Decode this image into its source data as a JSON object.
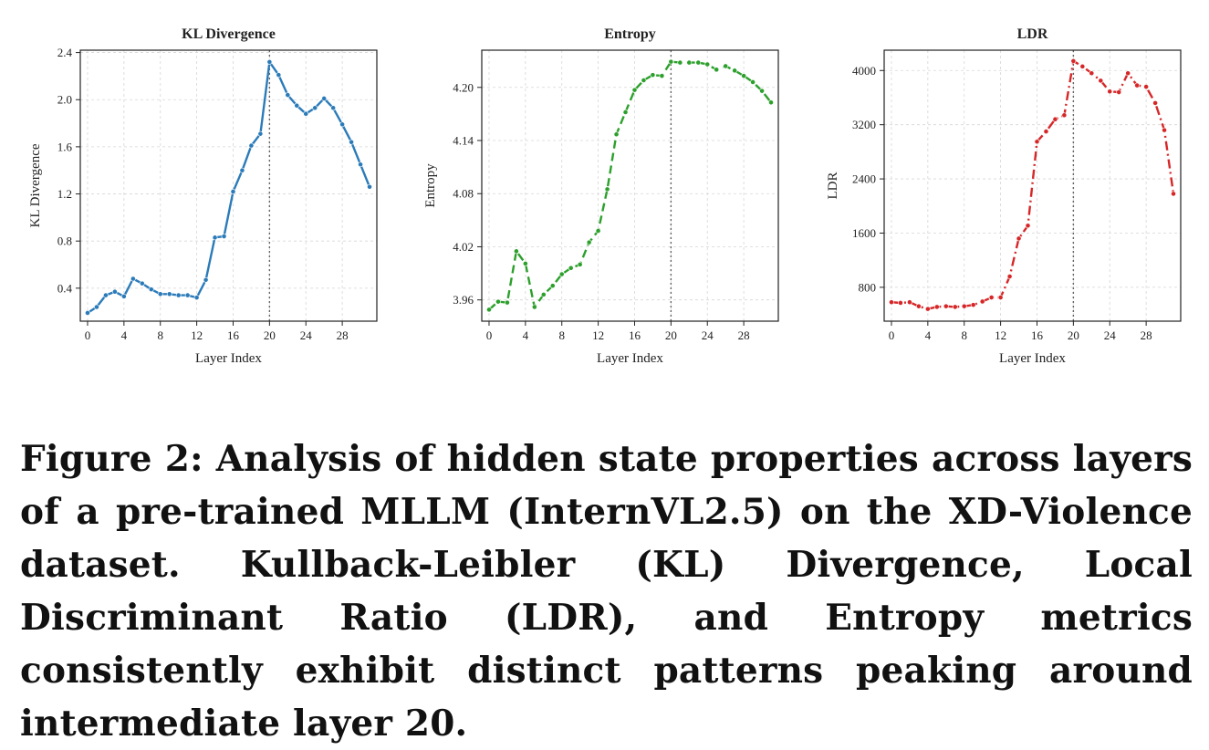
{
  "chart_data": [
    {
      "type": "line",
      "title": "KL Divergence",
      "xlabel": "Layer Index",
      "ylabel": "KL Divergence",
      "x": [
        0,
        1,
        2,
        3,
        4,
        5,
        6,
        7,
        8,
        9,
        10,
        11,
        12,
        13,
        14,
        15,
        16,
        17,
        18,
        19,
        20,
        21,
        22,
        23,
        24,
        25,
        26,
        27,
        28,
        29,
        30,
        31
      ],
      "values": [
        0.19,
        0.24,
        0.34,
        0.37,
        0.33,
        0.48,
        0.44,
        0.39,
        0.35,
        0.35,
        0.34,
        0.34,
        0.32,
        0.47,
        0.83,
        0.84,
        1.22,
        1.4,
        1.61,
        1.71,
        2.32,
        2.21,
        2.04,
        1.95,
        1.88,
        1.93,
        2.01,
        1.93,
        1.79,
        1.64,
        1.45,
        1.26
      ],
      "xticks": [
        0,
        4,
        8,
        12,
        16,
        20,
        24,
        28
      ],
      "yticks": [
        0.4,
        0.8,
        1.2,
        1.6,
        2.0,
        2.4
      ],
      "ytick_labels": [
        "0.4",
        "0.8",
        "1.2",
        "1.6",
        "2.0",
        "2.4"
      ],
      "xlim": [
        -0.8,
        31.8
      ],
      "ylim": [
        0.12,
        2.42
      ],
      "grid": true,
      "color": "#2b7bb9",
      "dash": "",
      "vline_x": 20
    },
    {
      "type": "line",
      "title": "Entropy",
      "xlabel": "Layer Index",
      "ylabel": "Entropy",
      "x": [
        0,
        1,
        2,
        3,
        4,
        5,
        6,
        7,
        8,
        9,
        10,
        11,
        12,
        13,
        14,
        15,
        16,
        17,
        18,
        19,
        20,
        21,
        22,
        23,
        24,
        25,
        26,
        27,
        28,
        29,
        30,
        31
      ],
      "values": [
        3.949,
        3.958,
        3.957,
        4.015,
        4.001,
        3.952,
        3.966,
        3.976,
        3.989,
        3.996,
        4.0,
        4.025,
        4.038,
        4.085,
        4.147,
        4.172,
        4.197,
        4.208,
        4.214,
        4.213,
        4.229,
        4.228,
        4.228,
        4.228,
        4.226,
        4.22,
        4.224,
        4.219,
        4.213,
        4.206,
        4.196,
        4.183
      ],
      "xticks": [
        0,
        4,
        8,
        12,
        16,
        20,
        24,
        28
      ],
      "yticks": [
        3.96,
        4.02,
        4.08,
        4.14,
        4.2
      ],
      "ytick_labels": [
        "3.96",
        "4.02",
        "4.08",
        "4.14",
        "4.20"
      ],
      "xlim": [
        -0.8,
        31.8
      ],
      "ylim": [
        3.936,
        4.242
      ],
      "grid": true,
      "color": "#2ca02c",
      "dash": "9 5",
      "vline_x": 20
    },
    {
      "type": "line",
      "title": "LDR",
      "xlabel": "Layer Index",
      "ylabel": "LDR",
      "x": [
        0,
        1,
        2,
        3,
        4,
        5,
        6,
        7,
        8,
        9,
        10,
        11,
        12,
        13,
        14,
        15,
        16,
        17,
        18,
        19,
        20,
        21,
        22,
        23,
        24,
        25,
        26,
        27,
        28,
        29,
        30,
        31
      ],
      "values": [
        580,
        570,
        580,
        520,
        480,
        510,
        520,
        510,
        520,
        540,
        590,
        650,
        650,
        960,
        1520,
        1710,
        2950,
        3100,
        3280,
        3340,
        4140,
        4060,
        3960,
        3850,
        3690,
        3680,
        3960,
        3780,
        3760,
        3520,
        3120,
        2180
      ],
      "xticks": [
        0,
        4,
        8,
        12,
        16,
        20,
        24,
        28
      ],
      "yticks": [
        800,
        1600,
        2400,
        3200,
        4000
      ],
      "ytick_labels": [
        "800",
        "1600",
        "2400",
        "3200",
        "4000"
      ],
      "xlim": [
        -0.8,
        31.8
      ],
      "ylim": [
        300,
        4300
      ],
      "grid": true,
      "color": "#d62728",
      "dash": "10 4 2 4",
      "vline_x": 20
    }
  ],
  "caption": "Figure 2: Analysis of hidden state properties across layers of a pre-trained MLLM (InternVL2.5) on the XD-Violence dataset. Kullback-Leibler (KL) Divergence, Local Discriminant Ratio (LDR), and Entropy metrics consistently exhibit distinct patterns peaking around intermediate layer 20."
}
